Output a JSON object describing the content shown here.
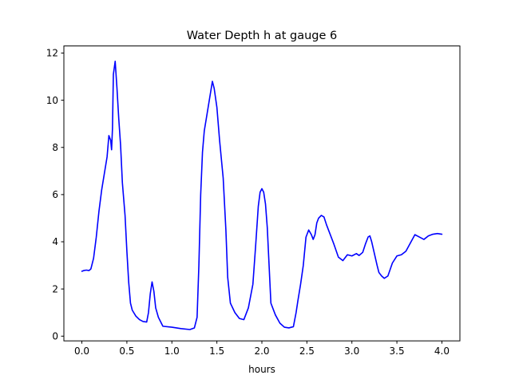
{
  "chart_data": {
    "type": "line",
    "title": "Water Depth h at gauge 6",
    "xlabel": "hours",
    "ylabel": "",
    "xlim": [
      -0.2,
      4.2
    ],
    "ylim": [
      -0.2,
      12.3
    ],
    "xticks": [
      0.0,
      0.5,
      1.0,
      1.5,
      2.0,
      2.5,
      3.0,
      3.5,
      4.0
    ],
    "xtick_labels": [
      "0.0",
      "0.5",
      "1.0",
      "1.5",
      "2.0",
      "2.5",
      "3.0",
      "3.5",
      "4.0"
    ],
    "yticks": [
      0,
      2,
      4,
      6,
      8,
      10,
      12
    ],
    "ytick_labels": [
      "0",
      "2",
      "4",
      "6",
      "8",
      "10",
      "12"
    ],
    "grid": false,
    "series": [
      {
        "color": "#0000ff",
        "x": [
          0.0,
          0.02,
          0.05,
          0.08,
          0.1,
          0.13,
          0.16,
          0.19,
          0.22,
          0.25,
          0.28,
          0.3,
          0.32,
          0.33,
          0.34,
          0.35,
          0.37,
          0.39,
          0.41,
          0.43,
          0.45,
          0.48,
          0.5,
          0.52,
          0.54,
          0.56,
          0.6,
          0.64,
          0.68,
          0.72,
          0.74,
          0.76,
          0.78,
          0.8,
          0.82,
          0.85,
          0.9,
          1.0,
          1.1,
          1.2,
          1.25,
          1.28,
          1.3,
          1.32,
          1.34,
          1.36,
          1.39,
          1.42,
          1.45,
          1.47,
          1.5,
          1.53,
          1.55,
          1.57,
          1.6,
          1.62,
          1.65,
          1.7,
          1.75,
          1.8,
          1.85,
          1.9,
          1.93,
          1.96,
          1.98,
          2.0,
          2.02,
          2.04,
          2.06,
          2.08,
          2.1,
          2.15,
          2.2,
          2.25,
          2.3,
          2.35,
          2.38,
          2.4,
          2.43,
          2.46,
          2.49,
          2.52,
          2.55,
          2.57,
          2.59,
          2.61,
          2.63,
          2.66,
          2.69,
          2.72,
          2.75,
          2.8,
          2.85,
          2.9,
          2.95,
          3.0,
          3.05,
          3.08,
          3.12,
          3.15,
          3.18,
          3.2,
          3.22,
          3.25,
          3.28,
          3.3,
          3.33,
          3.36,
          3.4,
          3.45,
          3.5,
          3.55,
          3.6,
          3.65,
          3.7,
          3.75,
          3.8,
          3.85,
          3.9,
          3.95,
          4.0
        ],
        "y": [
          2.75,
          2.78,
          2.8,
          2.78,
          2.85,
          3.3,
          4.2,
          5.3,
          6.2,
          6.9,
          7.6,
          8.5,
          8.3,
          7.9,
          8.8,
          11.1,
          11.65,
          10.5,
          9.2,
          8.1,
          6.5,
          5.1,
          3.6,
          2.3,
          1.4,
          1.1,
          0.85,
          0.7,
          0.62,
          0.6,
          1.0,
          1.8,
          2.3,
          1.9,
          1.2,
          0.8,
          0.42,
          0.38,
          0.32,
          0.28,
          0.35,
          0.8,
          3.0,
          6.0,
          7.8,
          8.7,
          9.4,
          10.1,
          10.8,
          10.5,
          9.7,
          8.3,
          7.5,
          6.7,
          4.5,
          2.5,
          1.4,
          1.0,
          0.75,
          0.7,
          1.2,
          2.2,
          3.8,
          5.5,
          6.1,
          6.25,
          6.1,
          5.6,
          4.6,
          3.0,
          1.4,
          0.9,
          0.55,
          0.38,
          0.35,
          0.4,
          1.0,
          1.5,
          2.2,
          3.0,
          4.2,
          4.5,
          4.3,
          4.1,
          4.3,
          4.8,
          5.0,
          5.12,
          5.05,
          4.7,
          4.4,
          3.9,
          3.35,
          3.2,
          3.45,
          3.4,
          3.5,
          3.42,
          3.55,
          3.9,
          4.2,
          4.25,
          4.0,
          3.5,
          3.0,
          2.7,
          2.55,
          2.45,
          2.55,
          3.1,
          3.4,
          3.45,
          3.6,
          3.95,
          4.3,
          4.2,
          4.1,
          4.25,
          4.32,
          4.35,
          4.32
        ]
      }
    ]
  }
}
